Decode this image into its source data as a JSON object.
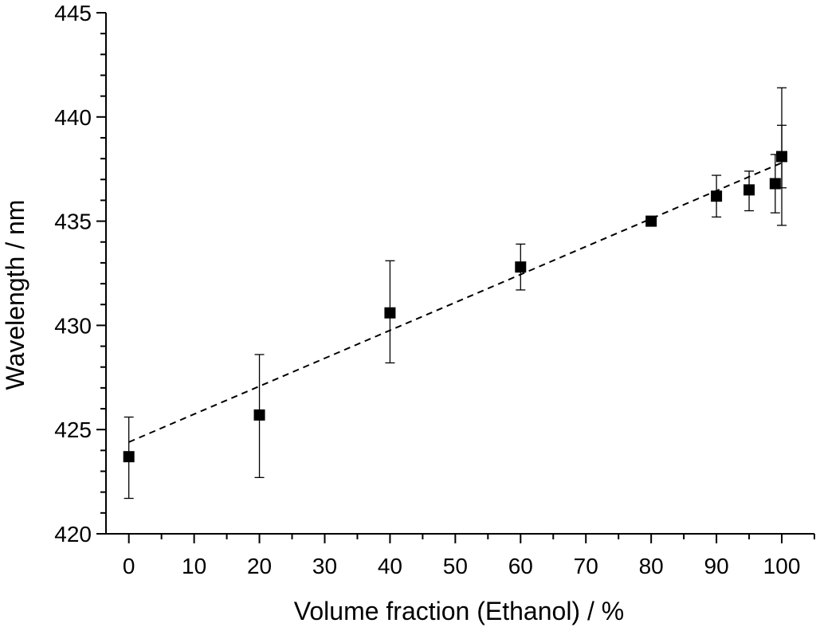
{
  "chart_data": {
    "type": "scatter",
    "xlabel": "Volume fraction (Ethanol) / %",
    "ylabel": "Wavelength / nm",
    "xlim": [
      -3.5,
      105
    ],
    "ylim": [
      420,
      445
    ],
    "x_tick_labels": [
      "0",
      "10",
      "20",
      "30",
      "40",
      "50",
      "60",
      "70",
      "80",
      "90",
      "100"
    ],
    "x_tick_positions": [
      0,
      10,
      20,
      30,
      40,
      50,
      60,
      70,
      80,
      90,
      100
    ],
    "y_tick_labels": [
      "420",
      "425",
      "430",
      "435",
      "440",
      "445"
    ],
    "y_tick_positions": [
      420,
      425,
      430,
      435,
      440,
      445
    ],
    "series": [
      {
        "marker": "square",
        "color": "#000000",
        "points": [
          {
            "x": 0,
            "y": 423.7,
            "err_low": 421.7,
            "err_high": 425.6
          },
          {
            "x": 20,
            "y": 425.7,
            "err_low": 422.7,
            "err_high": 428.6
          },
          {
            "x": 40,
            "y": 430.6,
            "err_low": 428.2,
            "err_high": 433.1
          },
          {
            "x": 60,
            "y": 432.8,
            "err_low": 431.7,
            "err_high": 433.9
          },
          {
            "x": 80,
            "y": 435.0
          },
          {
            "x": 90,
            "y": 436.2,
            "err_low": 435.2,
            "err_high": 437.2
          },
          {
            "x": 95,
            "y": 436.5,
            "err_low": 435.5,
            "err_high": 437.4
          },
          {
            "x": 99,
            "y": 436.8,
            "err_low": 435.4,
            "err_high": 438.2
          },
          {
            "x": 100,
            "y": 438.1,
            "err_low": 434.8,
            "err_high": 441.4,
            "err_low2": 436.6,
            "err_high2": 439.6
          }
        ]
      }
    ],
    "fit_line": {
      "style": "dashed",
      "color": "#000000",
      "x": [
        0,
        100
      ],
      "y": [
        424.4,
        437.8
      ]
    },
    "grid": false,
    "legend": "none"
  }
}
